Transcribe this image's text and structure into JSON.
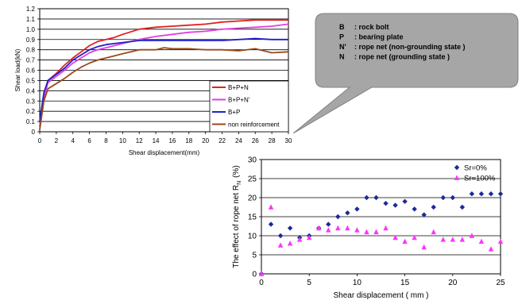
{
  "callout": {
    "rows": [
      {
        "key": "B",
        "text": ": rock bolt"
      },
      {
        "key": "P",
        "text": ": bearing plate"
      },
      {
        "key": "N'",
        "text": ": rope net (non-grounding state )"
      },
      {
        "key": "N",
        "text": ": rope net (grounding state )"
      }
    ],
    "colors": {
      "fill": "#a6a6a6",
      "stroke": "#808080"
    }
  },
  "chart_data": [
    {
      "type": "line",
      "title": "",
      "xlabel": "Shear displacement(mm)",
      "ylabel": "Shear load(kN)",
      "xlim": [
        0,
        30
      ],
      "ylim": [
        0,
        1.2
      ],
      "xticks": [
        0,
        2,
        4,
        6,
        8,
        10,
        12,
        14,
        16,
        18,
        20,
        22,
        24,
        26,
        28,
        30
      ],
      "yticks": [
        0,
        0.1,
        0.2,
        0.3,
        0.4,
        0.5,
        0.6,
        0.7,
        0.8,
        0.9,
        1.0,
        1.1,
        1.2
      ],
      "ytick_labels": [
        "0",
        "0.1",
        "0.2",
        "0.3",
        "0.4",
        "0.5",
        "0.6",
        "0.7",
        "0.8",
        "0.9",
        "1.0",
        "1.1",
        "1.2"
      ],
      "grid": "horizontal",
      "legend_position": "bottom-right",
      "series": [
        {
          "name": "B+P+N",
          "color": "#e02020",
          "x": [
            0,
            0.5,
            1,
            2,
            3,
            4,
            5,
            6,
            7,
            8,
            9,
            10,
            12,
            14,
            16,
            18,
            20,
            22,
            24,
            26,
            28,
            30
          ],
          "y": [
            0.05,
            0.35,
            0.5,
            0.57,
            0.65,
            0.72,
            0.78,
            0.84,
            0.88,
            0.9,
            0.92,
            0.95,
            1.0,
            1.02,
            1.03,
            1.04,
            1.05,
            1.07,
            1.08,
            1.09,
            1.09,
            1.09
          ]
        },
        {
          "name": "B+P+N'",
          "color": "#e040e0",
          "x": [
            0,
            0.5,
            1,
            2,
            3,
            4,
            5,
            6,
            7,
            8,
            9,
            10,
            12,
            14,
            16,
            18,
            20,
            22,
            24,
            26,
            28,
            30
          ],
          "y": [
            0.05,
            0.33,
            0.48,
            0.54,
            0.6,
            0.67,
            0.72,
            0.77,
            0.8,
            0.82,
            0.84,
            0.86,
            0.9,
            0.93,
            0.95,
            0.97,
            0.98,
            1.0,
            1.01,
            1.02,
            1.03,
            1.05
          ]
        },
        {
          "name": "B+P",
          "color": "#1f1fcc",
          "x": [
            0,
            0.5,
            1,
            2,
            3,
            4,
            5,
            6,
            7,
            8,
            9,
            10,
            12,
            14,
            16,
            18,
            20,
            22,
            24,
            26,
            28,
            30
          ],
          "y": [
            0.1,
            0.38,
            0.5,
            0.56,
            0.62,
            0.7,
            0.75,
            0.8,
            0.83,
            0.85,
            0.86,
            0.87,
            0.89,
            0.89,
            0.89,
            0.89,
            0.89,
            0.89,
            0.9,
            0.91,
            0.9,
            0.9
          ]
        },
        {
          "name": "non reinforcement",
          "color": "#9a4a1a",
          "x": [
            0,
            0.5,
            1,
            2,
            3,
            4,
            5,
            6,
            7,
            8,
            9,
            10,
            12,
            14,
            15,
            16,
            18,
            20,
            22,
            24,
            26,
            28,
            30
          ],
          "y": [
            0.02,
            0.3,
            0.42,
            0.47,
            0.52,
            0.58,
            0.63,
            0.67,
            0.7,
            0.72,
            0.74,
            0.76,
            0.8,
            0.8,
            0.82,
            0.81,
            0.81,
            0.8,
            0.8,
            0.79,
            0.81,
            0.77,
            0.78
          ]
        }
      ]
    },
    {
      "type": "scatter",
      "title": "",
      "xlabel": "Shear displacement ( mm )",
      "ylabel": "The effect of rope net R",
      "ylabel_sub": "N",
      "ylabel_unit": "(%)",
      "xlim": [
        0,
        25
      ],
      "ylim": [
        0,
        30
      ],
      "xticks": [
        0,
        5,
        10,
        15,
        20,
        25
      ],
      "yticks": [
        0,
        5,
        10,
        15,
        20,
        25,
        30
      ],
      "grid": "horizontal",
      "legend_position": "top-right",
      "series": [
        {
          "name": "Sr=0%",
          "marker": "diamond",
          "color": "#1a2a99",
          "x": [
            0,
            1,
            2,
            3,
            4,
            5,
            6,
            7,
            8,
            9,
            10,
            11,
            12,
            13,
            14,
            15,
            16,
            17,
            18,
            19,
            20,
            21,
            22,
            23,
            24,
            25
          ],
          "y": [
            0,
            13,
            10,
            12,
            9.5,
            10,
            12,
            13,
            15,
            16,
            17,
            20,
            20,
            18.5,
            18,
            19,
            17,
            15.5,
            17.5,
            20,
            20,
            17.5,
            21,
            21,
            21,
            21
          ]
        },
        {
          "name": "Sr=100%",
          "marker": "triangle",
          "color": "#ff33ff",
          "x": [
            0,
            1,
            2,
            3,
            4,
            5,
            6,
            7,
            8,
            9,
            10,
            11,
            12,
            13,
            14,
            15,
            16,
            17,
            18,
            19,
            20,
            21,
            22,
            23,
            24,
            25
          ],
          "y": [
            0,
            17.5,
            7.5,
            8,
            9,
            9.5,
            12,
            11.5,
            12,
            12,
            11.5,
            11,
            11,
            12,
            9.5,
            8.5,
            9.5,
            7,
            11,
            9,
            9,
            9,
            10,
            8.5,
            6.5,
            8.5
          ]
        }
      ]
    }
  ]
}
